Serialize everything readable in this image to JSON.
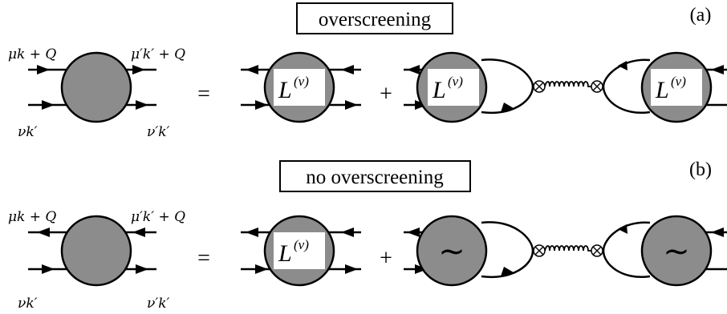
{
  "panels": [
    {
      "title": "overscreening",
      "letter": "(a)",
      "labels": {
        "top_left": "μk + Q",
        "top_right": "μ′k′ + Q",
        "bottom_left": "νk′",
        "bottom_right": "ν′k′"
      },
      "equals": "=",
      "plus": "+",
      "vertex_main": "L",
      "vertex_main_sup": "(v)",
      "vertex_left": "L",
      "vertex_left_sup": "(v)",
      "vertex_right": "L",
      "vertex_right_sup": "(v)"
    },
    {
      "title": "no overscreening",
      "letter": "(b)",
      "labels": {
        "top_left": "μk + Q",
        "top_right": "μ′k′ + Q",
        "bottom_left": "νk′",
        "bottom_right": "ν′k′"
      },
      "equals": "=",
      "plus": "+",
      "vertex_main": "L",
      "vertex_main_sup": "(v)",
      "vertex_left": "∼",
      "vertex_right": "∼"
    }
  ],
  "colors": {
    "blob": "#8c8c8c",
    "line": "#000000",
    "box_bg": "#ffffff"
  }
}
